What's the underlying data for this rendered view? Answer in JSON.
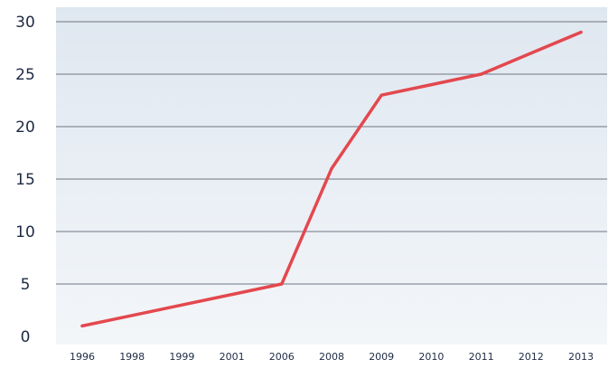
{
  "chart_data": {
    "type": "line",
    "title": "",
    "xlabel": "",
    "ylabel": "",
    "categories": [
      "1996",
      "1998",
      "1999",
      "2001",
      "2006",
      "2008",
      "2009",
      "2010",
      "2011",
      "2012",
      "2013"
    ],
    "series": [
      {
        "values": [
          1,
          2,
          3,
          4,
          5,
          16,
          23,
          24,
          25,
          27,
          29
        ]
      }
    ],
    "ylim": [
      0,
      30
    ],
    "yticks": [
      "0",
      "5",
      "10",
      "15",
      "20",
      "25",
      "30"
    ],
    "grid": true,
    "legend": "none",
    "colors": {
      "line": "#e3484e",
      "background_top": "#dfe7f0",
      "background_bottom": "#f3f6f9",
      "gridline": "#6f7682",
      "text": "#1e2a44"
    }
  }
}
